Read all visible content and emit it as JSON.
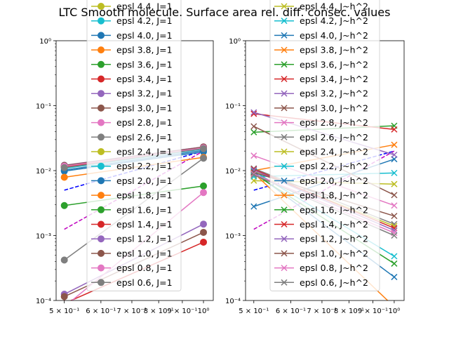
{
  "chart_data": {
    "type": "line",
    "title": "LTC Smooth molecule. Surface area rel. diff. consec. values",
    "x_scale": "log",
    "y_scale": "log",
    "x_ticks": [
      {
        "value": 0.5,
        "label": "5 × 10⁻¹"
      },
      {
        "value": 0.6,
        "label": "6 × 10⁻¹"
      },
      {
        "value": 0.7,
        "label": "7 × 10⁻¹"
      },
      {
        "value": 0.8,
        "label": "8 × 10⁻¹"
      },
      {
        "value": 0.9,
        "label": "9 × 10⁻¹"
      },
      {
        "value": 1.0,
        "label": "10⁰"
      }
    ],
    "y_ticks": [
      {
        "value": 0.0001,
        "label": "10⁻⁴"
      },
      {
        "value": 0.001,
        "label": "10⁻³"
      },
      {
        "value": 0.01,
        "label": "10⁻²"
      },
      {
        "value": 0.1,
        "label": "10⁻¹"
      },
      {
        "value": 1,
        "label": "10⁰"
      }
    ],
    "legend_placement": "upper center",
    "panels": [
      {
        "xlim": [
          0.48,
          1.05
        ],
        "ylim": [
          0.0001,
          1
        ],
        "marker": "o",
        "legend_title_rows": true,
        "reference_lines": [
          {
            "color": "#0000ff",
            "x": [
              0.5,
              1.0
            ],
            "y": [
              0.005,
              0.02
            ]
          },
          {
            "color": "#bf00bf",
            "x": [
              0.5,
              1.0
            ],
            "y": [
              0.00125,
              0.02
            ]
          }
        ],
        "series": [
          {
            "name": "epsl 4.4, J=1",
            "color": "#bcbd22",
            "x": [
              0.5,
              1.0
            ],
            "y": [
              0.0119,
              0.0228
            ]
          },
          {
            "name": "epsl 4.2, J=1",
            "color": "#17becf",
            "x": [
              0.5,
              1.0
            ],
            "y": [
              0.0115,
              0.0225
            ]
          },
          {
            "name": "epsl 4.0, J=1",
            "color": "#1f77b4",
            "x": [
              0.5,
              1.0
            ],
            "y": [
              0.0098,
              0.0195
            ]
          },
          {
            "name": "epsl 3.8, J=1",
            "color": "#ff7f0e",
            "x": [
              0.5,
              1.0
            ],
            "y": [
              0.0079,
              0.016
            ]
          },
          {
            "name": "epsl 3.6, J=1",
            "color": "#2ca02c",
            "x": [
              0.5,
              1.0
            ],
            "y": [
              0.0029,
              0.0058
            ]
          },
          {
            "name": "epsl 3.4, J=1",
            "color": "#d62728",
            "x": [
              0.5,
              1.0
            ],
            "y": [
              9e-05,
              0.00079
            ]
          },
          {
            "name": "epsl 3.2, J=1",
            "color": "#9467bd",
            "x": [
              0.5,
              1.0
            ],
            "y": [
              0.000125,
              0.0015
            ]
          },
          {
            "name": "epsl 3.0, J=1",
            "color": "#8c564b",
            "x": [
              0.5,
              1.0
            ],
            "y": [
              0.000115,
              0.00112
            ]
          },
          {
            "name": "epsl 2.8, J=1",
            "color": "#e377c2",
            "x": [
              0.5,
              1.0
            ],
            "y": [
              8e-05,
              0.0046
            ]
          },
          {
            "name": "epsl 2.6, J=1",
            "color": "#7f7f7f",
            "x": [
              0.5,
              1.0
            ],
            "y": [
              0.00042,
              0.0155
            ]
          },
          {
            "name": "epsl 2.4, J=1",
            "color": "#bcbd22",
            "x": [
              0.5,
              1.0
            ],
            "y": [
              0.0113,
              0.0222
            ]
          },
          {
            "name": "epsl 2.2, J=1",
            "color": "#17becf",
            "x": [
              0.5,
              1.0
            ],
            "y": [
              0.0108,
              0.0215
            ]
          },
          {
            "name": "epsl 2.0, J=1",
            "color": "#1f77b4",
            "x": [
              0.5,
              1.0
            ],
            "y": [
              0.0102,
              0.0205
            ]
          },
          {
            "name": "epsl 1.8, J=1",
            "color": "#ff7f0e",
            "x": [
              0.5,
              1.0
            ],
            "y": [
              0.0118,
              0.0232
            ]
          },
          {
            "name": "epsl 1.6, J=1",
            "color": "#2ca02c",
            "x": [
              0.5,
              1.0
            ],
            "y": [
              0.0116,
              0.0229
            ]
          },
          {
            "name": "epsl 1.4, J=1",
            "color": "#d62728",
            "x": [
              0.5,
              1.0
            ],
            "y": [
              0.0114,
              0.0226
            ]
          },
          {
            "name": "epsl 1.2, J=1",
            "color": "#9467bd",
            "x": [
              0.5,
              1.0
            ],
            "y": [
              0.0121,
              0.0232
            ]
          },
          {
            "name": "epsl 1.0, J=1",
            "color": "#8c564b",
            "x": [
              0.5,
              1.0
            ],
            "y": [
              0.012,
              0.023
            ]
          },
          {
            "name": "epsl 0.8, J=1",
            "color": "#e377c2",
            "x": [
              0.5,
              1.0
            ],
            "y": [
              0.0117,
              0.0224
            ]
          },
          {
            "name": "epsl 0.6, J=1",
            "color": "#7f7f7f",
            "x": [
              0.5,
              1.0
            ],
            "y": [
              0.0111,
              0.0218
            ]
          }
        ]
      },
      {
        "xlim": [
          0.48,
          1.05
        ],
        "ylim": [
          0.0001,
          1
        ],
        "marker": "x",
        "reference_lines": [
          {
            "color": "#0000ff",
            "x": [
              0.5,
              1.0
            ],
            "y": [
              0.005,
              0.02
            ]
          },
          {
            "color": "#bf00bf",
            "x": [
              0.5,
              1.0
            ],
            "y": [
              0.00125,
              0.02
            ]
          }
        ],
        "series": [
          {
            "name": "epsl 4.4, J~h^2",
            "color": "#bcbd22",
            "x": [
              0.5,
              1.0
            ],
            "y": [
              0.007,
              0.0062
            ]
          },
          {
            "name": "epsl 4.2, J~h^2",
            "color": "#17becf",
            "x": [
              0.5,
              1.0
            ],
            "y": [
              0.0081,
              0.0092
            ]
          },
          {
            "name": "epsl 4.0, J~h^2",
            "color": "#1f77b4",
            "x": [
              0.5,
              1.0
            ],
            "y": [
              0.0028,
              0.015
            ]
          },
          {
            "name": "epsl 3.8, J~h^2",
            "color": "#ff7f0e",
            "x": [
              0.5,
              1.0
            ],
            "y": [
              0.01,
              0.025
            ]
          },
          {
            "name": "epsl 3.6, J~h^2",
            "color": "#2ca02c",
            "x": [
              0.5,
              1.0
            ],
            "y": [
              0.039,
              0.049
            ]
          },
          {
            "name": "epsl 3.4, J~h^2",
            "color": "#d62728",
            "x": [
              0.5,
              1.0
            ],
            "y": [
              0.075,
              0.043
            ]
          },
          {
            "name": "epsl 3.2, J~h^2",
            "color": "#9467bd",
            "x": [
              0.5,
              1.0
            ],
            "y": [
              0.079,
              0.0175
            ]
          },
          {
            "name": "epsl 3.0, J~h^2",
            "color": "#8c564b",
            "x": [
              0.5,
              1.0
            ],
            "y": [
              0.048,
              0.0042
            ]
          },
          {
            "name": "epsl 2.8, J~h^2",
            "color": "#e377c2",
            "x": [
              0.5,
              1.0
            ],
            "y": [
              0.017,
              0.0029
            ]
          },
          {
            "name": "epsl 2.6, J~h^2",
            "color": "#7f7f7f",
            "x": [
              0.5,
              1.0
            ],
            "y": [
              0.0108,
              0.0015
            ]
          },
          {
            "name": "epsl 2.4, J~h^2",
            "color": "#bcbd22",
            "x": [
              0.5,
              1.0
            ],
            "y": [
              0.01,
              0.0014
            ]
          },
          {
            "name": "epsl 2.2, J~h^2",
            "color": "#17becf",
            "x": [
              0.5,
              1.0
            ],
            "y": [
              0.0098,
              0.00048
            ]
          },
          {
            "name": "epsl 2.0, J~h^2",
            "color": "#1f77b4",
            "x": [
              0.5,
              1.0
            ],
            "y": [
              0.0095,
              0.00023
            ]
          },
          {
            "name": "epsl 1.8, J~h^2",
            "color": "#ff7f0e",
            "x": [
              0.5,
              1.0
            ],
            "y": [
              0.0092,
              8e-05
            ]
          },
          {
            "name": "epsl 1.6, J~h^2",
            "color": "#2ca02c",
            "x": [
              0.5,
              1.0
            ],
            "y": [
              0.009,
              0.00037
            ]
          },
          {
            "name": "epsl 1.4, J~h^2",
            "color": "#d62728",
            "x": [
              0.5,
              1.0
            ],
            "y": [
              0.0105,
              0.0013
            ]
          },
          {
            "name": "epsl 1.2, J~h^2",
            "color": "#9467bd",
            "x": [
              0.5,
              1.0
            ],
            "y": [
              0.0102,
              0.0012
            ]
          },
          {
            "name": "epsl 1.0, J~h^2",
            "color": "#8c564b",
            "x": [
              0.5,
              1.0
            ],
            "y": [
              0.0094,
              0.002
            ]
          },
          {
            "name": "epsl 0.8, J~h^2",
            "color": "#e377c2",
            "x": [
              0.5,
              1.0
            ],
            "y": [
              0.0089,
              0.0011
            ]
          },
          {
            "name": "epsl 0.6, J~h^2",
            "color": "#7f7f7f",
            "x": [
              0.5,
              1.0
            ],
            "y": [
              0.0086,
              0.001
            ]
          }
        ]
      }
    ]
  }
}
